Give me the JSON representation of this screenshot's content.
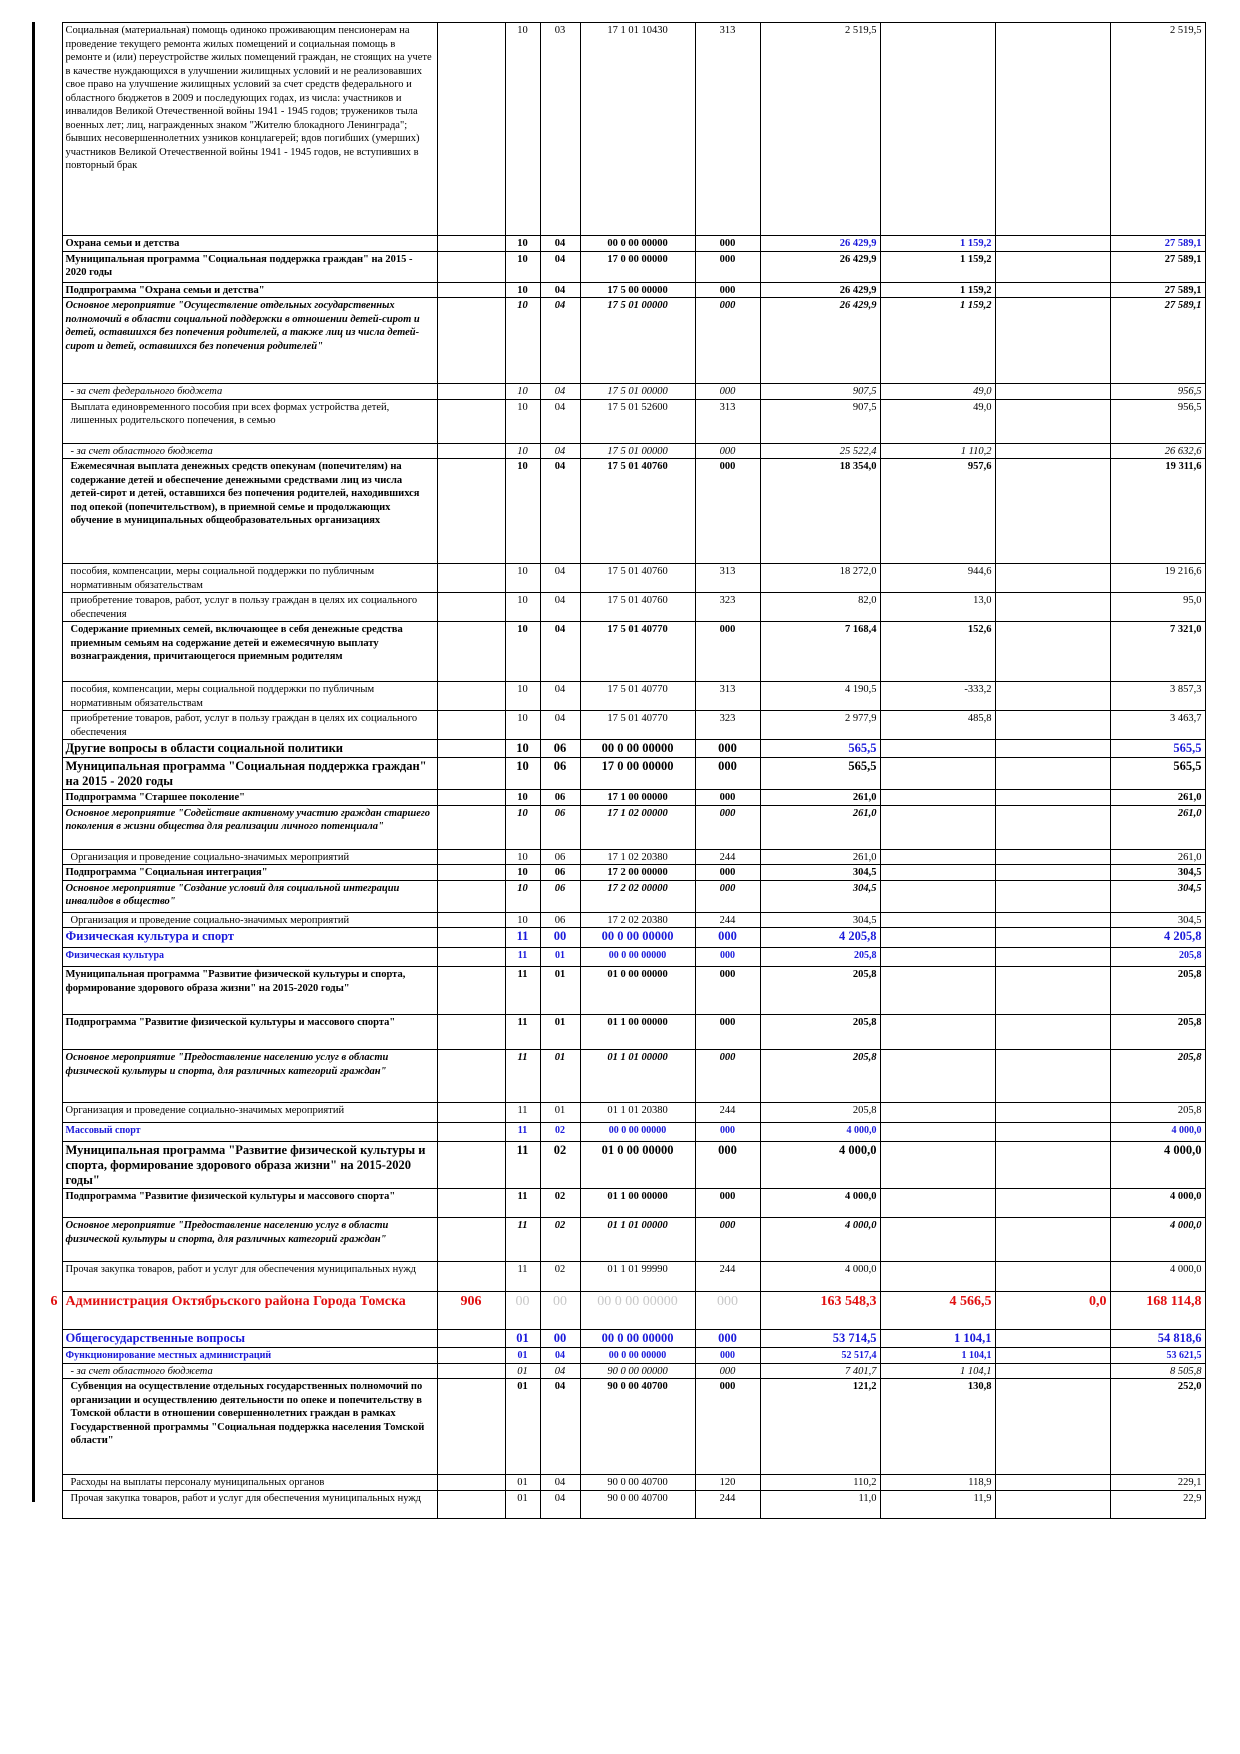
{
  "table": {
    "rows": [
      [
        "",
        "",
        "",
        "",
        "",
        "",
        "",
        "",
        "",
        "",
        ""
      ],
      [
        null,
        "Социальная (материальная) помощь одиноко проживающим пенсионерам на проведение текущего ремонта жилых помещений и социальная помощь в ремонте и (или) переустройстве жилых помещений граждан, не стоящих на учете в качестве нуждающихся в улучшении жилищных условий и не реализовавших свое право на улучшение жилищных условий за счет средств федерального и областного бюджетов в 2009 и последующих годах, из числа: участников и инвалидов Великой Отечественной войны 1941 - 1945 годов; тружеников тыла военных лет; лиц, награжденных знаком \"Жителю блокадного Ленинграда\"; бывших несовершеннолетних узников концлагерей; вдов погибших (умерших) участников Великой Отечественной войны 1941 - 1945 годов, не вступивших в повторный брак",
        null,
        "10",
        "03",
        "17 1 01 10430",
        "313",
        "2 519,5",
        null,
        null,
        "2 519,5"
      ]
    ]
  }
}
